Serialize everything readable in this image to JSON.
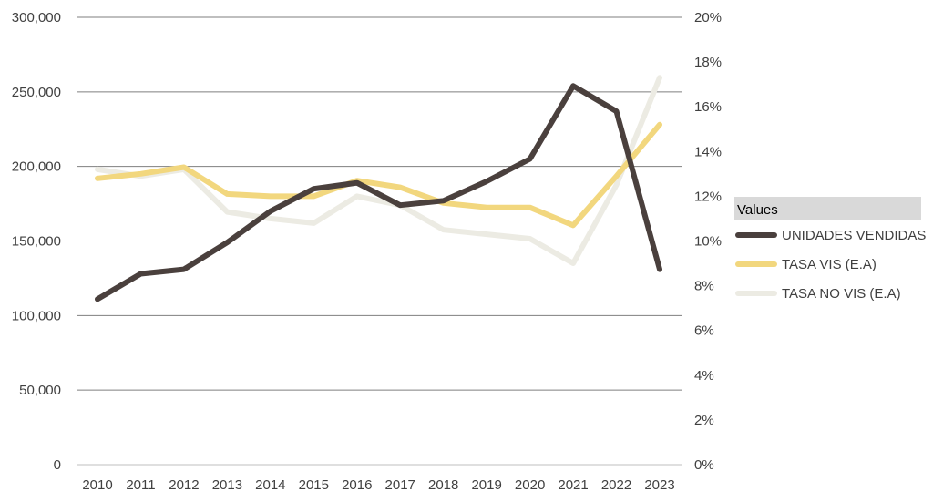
{
  "chart_data": {
    "type": "line",
    "categories": [
      "2010",
      "2011",
      "2012",
      "2013",
      "2014",
      "2015",
      "2016",
      "2017",
      "2018",
      "2019",
      "2020",
      "2021",
      "2022",
      "2023"
    ],
    "y_left": {
      "range": [
        0,
        300000
      ],
      "ticks": [
        0,
        50000,
        100000,
        150000,
        200000,
        250000,
        300000
      ],
      "tick_labels": [
        "0",
        "50,000",
        "100,000",
        "150,000",
        "200,000",
        "250,000",
        "300,000"
      ]
    },
    "y_right": {
      "range": [
        0,
        20
      ],
      "ticks": [
        0,
        2,
        4,
        6,
        8,
        10,
        12,
        14,
        16,
        18,
        20
      ],
      "tick_labels": [
        "0%",
        "2%",
        "4%",
        "6%",
        "8%",
        "10%",
        "12%",
        "14%",
        "16%",
        "18%",
        "20%"
      ]
    },
    "grid": true,
    "legend": {
      "title": "Values",
      "position": "right"
    },
    "series": [
      {
        "name": "UNIDADES VENDIDAS",
        "axis": "left",
        "color": "#4a403d",
        "values": [
          111000,
          128000,
          131000,
          149000,
          170000,
          185000,
          189000,
          174000,
          177000,
          190000,
          205000,
          254000,
          237000,
          131000
        ]
      },
      {
        "name": "TASA VIS (E.A)",
        "axis": "right",
        "color": "#f2d77e",
        "values": [
          12.8,
          13.0,
          13.3,
          12.1,
          12.0,
          12.0,
          12.7,
          12.4,
          11.7,
          11.5,
          11.5,
          10.7,
          12.9,
          15.2
        ]
      },
      {
        "name": "TASA NO VIS (E.A)",
        "axis": "right",
        "color": "#ecebe3",
        "values": [
          13.2,
          12.9,
          13.2,
          11.3,
          11.0,
          10.8,
          12.0,
          11.6,
          10.5,
          10.3,
          10.1,
          9.0,
          12.5,
          17.3
        ]
      }
    ]
  }
}
